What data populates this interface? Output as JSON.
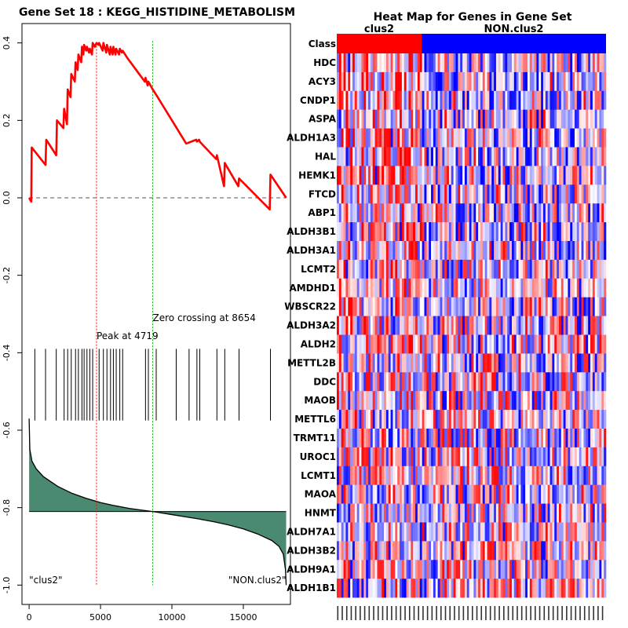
{
  "chart_data": [
    {
      "type": "line",
      "title": "Gene Set  18 : KEGG_HISTIDINE_METABOLISM",
      "xlabel": "",
      "ylabel": "",
      "xlim": [
        -500,
        18300
      ],
      "ylim": [
        -1.05,
        0.45
      ],
      "x_ticks": [
        0,
        5000,
        10000,
        15000
      ],
      "x_tick_labels": [
        "0",
        "5000",
        "10000",
        "15000"
      ],
      "y_ticks": [
        -1.0,
        -0.8,
        -0.6,
        -0.4,
        -0.2,
        0.0,
        0.2,
        0.4
      ],
      "y_tick_labels": [
        "-1.0",
        "-0.8",
        "-0.6",
        "-0.4",
        "-0.2",
        "0.0",
        "0.2",
        "0.4"
      ],
      "running_es": {
        "x": [
          0,
          150,
          180,
          1150,
          1200,
          1900,
          1950,
          2400,
          2450,
          2650,
          2700,
          2900,
          2950,
          3200,
          3250,
          3400,
          3450,
          3650,
          3700,
          3800,
          3850,
          4000,
          4050,
          4200,
          4250,
          4400,
          4450,
          4600,
          4719,
          4850,
          4900,
          5150,
          5200,
          5400,
          5450,
          5650,
          5700,
          5850,
          5900,
          6050,
          6100,
          6300,
          6350,
          6500,
          6550,
          6900,
          7500,
          8100,
          8150,
          8300,
          8350,
          8654,
          9000,
          10000,
          11000,
          11700,
          11750,
          11900,
          11950,
          13100,
          13150,
          13650,
          13700,
          14650,
          14700,
          16850,
          16900,
          18000
        ],
        "y": [
          0.0,
          -0.01,
          0.13,
          0.085,
          0.15,
          0.11,
          0.2,
          0.18,
          0.23,
          0.19,
          0.28,
          0.26,
          0.32,
          0.3,
          0.35,
          0.33,
          0.37,
          0.35,
          0.39,
          0.37,
          0.395,
          0.38,
          0.39,
          0.375,
          0.385,
          0.37,
          0.4,
          0.39,
          0.4,
          0.395,
          0.4,
          0.38,
          0.4,
          0.375,
          0.395,
          0.37,
          0.39,
          0.37,
          0.39,
          0.37,
          0.385,
          0.37,
          0.385,
          0.375,
          0.38,
          0.36,
          0.33,
          0.3,
          0.31,
          0.29,
          0.3,
          0.28,
          0.26,
          0.2,
          0.14,
          0.15,
          0.145,
          0.15,
          0.145,
          0.1,
          0.11,
          0.03,
          0.09,
          0.03,
          0.05,
          -0.03,
          0.06,
          0.0
        ]
      },
      "hit_positions": [
        400,
        1150,
        1900,
        2450,
        2700,
        2950,
        3250,
        3450,
        3700,
        3850,
        4050,
        4250,
        4450,
        4900,
        5200,
        5450,
        5700,
        5900,
        6100,
        6350,
        6550,
        8150,
        8350,
        8900,
        10300,
        11200,
        11750,
        11950,
        13150,
        13700,
        14700,
        16900
      ],
      "ranked_metric": {
        "x": [
          0,
          50,
          200,
          500,
          1000,
          2000,
          3000,
          4000,
          5000,
          6000,
          7000,
          8000,
          8654,
          9000,
          10000,
          11000,
          12000,
          13000,
          14000,
          15000,
          16000,
          17000,
          17500,
          17800,
          17950,
          18000
        ],
        "y": [
          -0.57,
          -0.65,
          -0.68,
          -0.7,
          -0.72,
          -0.745,
          -0.763,
          -0.776,
          -0.787,
          -0.795,
          -0.802,
          -0.807,
          -0.81,
          -0.812,
          -0.818,
          -0.824,
          -0.83,
          -0.837,
          -0.845,
          -0.855,
          -0.868,
          -0.885,
          -0.9,
          -0.92,
          -0.96,
          -1.0
        ]
      },
      "metric_baseline": -0.81,
      "es_zero": 0.0,
      "peak_x": 4719,
      "zero_crossing_x": 8654,
      "peak_label": "Peak at 4719",
      "zero_crossing_label": "Zero crossing at 8654",
      "left_class_label": "\"clus2\"",
      "right_class_label": "\"NON.clus2\"",
      "colors": {
        "es_line": "#ff0000",
        "peak_line": "#ff0000",
        "zero_crossing_line": "#00bb00",
        "metric_fill": "#4a8a70"
      }
    },
    {
      "type": "heatmap",
      "title": "Heat Map for Genes in Gene Set",
      "class_row_label": "Class",
      "classes": [
        {
          "name": "clus2",
          "fraction": 0.315,
          "color": "#ff0000"
        },
        {
          "name": "NON.clus2",
          "fraction": 0.685,
          "color": "#0000ff"
        }
      ],
      "genes": [
        "HDC",
        "ACY3",
        "CNDP1",
        "ASPA",
        "ALDH1A3",
        "HAL",
        "HEMK1",
        "FTCD",
        "ABP1",
        "ALDH3B1",
        "ALDH3A1",
        "LCMT2",
        "AMDHD1",
        "WBSCR22",
        "ALDH3A2",
        "ALDH2",
        "METTL2B",
        "DDC",
        "MAOB",
        "METTL6",
        "TRMT11",
        "UROC1",
        "LCMT1",
        "MAOA",
        "HNMT",
        "ALDH7A1",
        "ALDH3B2",
        "ALDH9A1",
        "ALDH1B1"
      ],
      "n_samples": 120,
      "color_scale": {
        "low": "#0000ff",
        "mid": "#ffffff",
        "high": "#ff0000"
      }
    }
  ]
}
